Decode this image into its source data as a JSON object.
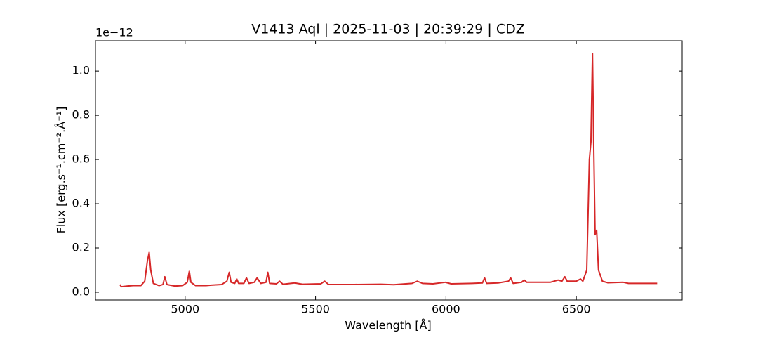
{
  "chart_data": {
    "type": "line",
    "title": "V1413 Aql | 2025-11-03 | 20:39:29 | CDZ",
    "x_label": "Wavelength [Å]",
    "y_label": "Flux [erg.s⁻¹.cm⁻².Å⁻¹]",
    "offset_text": "1e−12",
    "color": "#d62728",
    "xlim": [
      4656,
      6906
    ],
    "ylim": [
      -0.035,
      1.137
    ],
    "xticks": [
      5000,
      5500,
      6000,
      6500
    ],
    "yticks": [
      {
        "value": 0,
        "label": "0.0"
      },
      0.2,
      0.4,
      0.6,
      0.8,
      {
        "value": 1,
        "label": "1.0"
      }
    ],
    "x": [
      4750,
      4755,
      4780,
      4800,
      4830,
      4845,
      4855,
      4862,
      4868,
      4878,
      4900,
      4915,
      4922,
      4930,
      4960,
      4990,
      5008,
      5016,
      5022,
      5040,
      5080,
      5100,
      5140,
      5160,
      5169,
      5176,
      5190,
      5198,
      5205,
      5225,
      5235,
      5245,
      5265,
      5276,
      5290,
      5310,
      5317,
      5324,
      5350,
      5362,
      5375,
      5420,
      5450,
      5520,
      5535,
      5550,
      5650,
      5750,
      5800,
      5870,
      5890,
      5910,
      5950,
      5998,
      6020,
      6100,
      6140,
      6148,
      6156,
      6200,
      6240,
      6248,
      6258,
      6290,
      6300,
      6310,
      6350,
      6400,
      6430,
      6445,
      6456,
      6465,
      6500,
      6516,
      6525,
      6540,
      6550,
      6556,
      6562,
      6566,
      6572,
      6578,
      6585,
      6600,
      6620,
      6680,
      6700,
      6800,
      6810
    ],
    "values": [
      0.035,
      0.025,
      0.028,
      0.03,
      0.03,
      0.05,
      0.14,
      0.18,
      0.1,
      0.04,
      0.03,
      0.035,
      0.07,
      0.035,
      0.028,
      0.03,
      0.045,
      0.095,
      0.045,
      0.03,
      0.03,
      0.032,
      0.035,
      0.05,
      0.09,
      0.045,
      0.04,
      0.06,
      0.04,
      0.04,
      0.065,
      0.04,
      0.045,
      0.065,
      0.04,
      0.045,
      0.09,
      0.04,
      0.038,
      0.05,
      0.036,
      0.042,
      0.036,
      0.038,
      0.05,
      0.035,
      0.035,
      0.036,
      0.034,
      0.04,
      0.05,
      0.04,
      0.038,
      0.045,
      0.038,
      0.04,
      0.042,
      0.065,
      0.04,
      0.042,
      0.05,
      0.065,
      0.04,
      0.045,
      0.055,
      0.045,
      0.045,
      0.045,
      0.055,
      0.05,
      0.07,
      0.05,
      0.05,
      0.06,
      0.05,
      0.1,
      0.6,
      0.68,
      1.08,
      0.72,
      0.26,
      0.28,
      0.1,
      0.05,
      0.043,
      0.045,
      0.04,
      0.04,
      0.04
    ]
  }
}
